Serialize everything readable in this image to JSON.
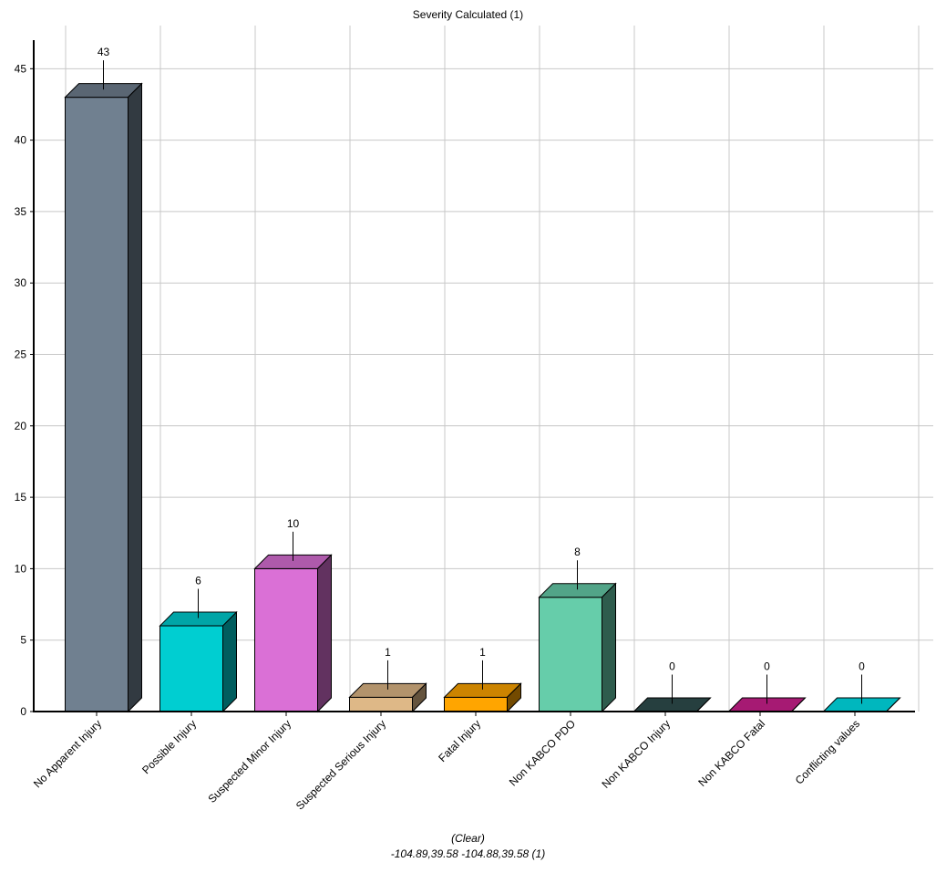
{
  "chart_data": {
    "type": "bar",
    "title": "Severity Calculated (1)",
    "categories": [
      "No Apparent Injury",
      "Possible Injury",
      "Suspected Minor Injury",
      "Suspected Serious Injury",
      "Fatal Injury",
      "Non KABCO PDO",
      "Non KABCO Injury",
      "Non KABCO Fatal",
      "Conflicting values"
    ],
    "values": [
      43,
      6,
      10,
      1,
      1,
      8,
      0,
      0,
      0
    ],
    "colors": [
      "#708090",
      "#00CED1",
      "#DA70D6",
      "#DEB887",
      "#FFA500",
      "#66CDAA",
      "#2F4F4F",
      "#D02090",
      "#00E5EE"
    ],
    "ylim": [
      0,
      47
    ],
    "yticks": [
      0,
      5,
      10,
      15,
      20,
      25,
      30,
      35,
      40,
      45
    ],
    "grid": true,
    "style": "3d-bar",
    "data_labels": true
  },
  "footer": {
    "line1": "(Clear)",
    "line2": "-104.89,39.58 -104.88,39.58 (1)"
  }
}
